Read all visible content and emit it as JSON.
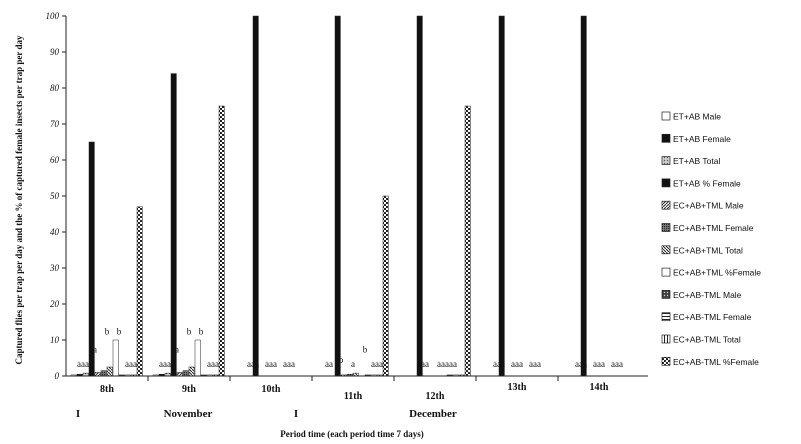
{
  "chart_data": {
    "type": "bar",
    "title": "",
    "ylabel": "Captured flies per trap per day and the % of captured female insects per trap per day",
    "xlabel": "Period time (each period time 7 days)",
    "ylim": [
      0,
      100
    ],
    "yticks": [
      0,
      10,
      20,
      30,
      40,
      50,
      60,
      70,
      80,
      90,
      100
    ],
    "categories": [
      "8th",
      "9th",
      "10th",
      "11th",
      "12th",
      "13th",
      "14th"
    ],
    "month_labels": [
      "I",
      "November",
      "I",
      "December"
    ],
    "legend_position": "right",
    "grid": false,
    "series": [
      {
        "name": "ET+AB Male",
        "pattern": "white",
        "values": [
          0.3,
          0.3,
          0,
          0,
          0,
          0,
          0
        ]
      },
      {
        "name": "ET+AB Female",
        "pattern": "black",
        "values": [
          0.5,
          0.5,
          0,
          0,
          0,
          0,
          0
        ]
      },
      {
        "name": "ET+AB Total",
        "pattern": "grey-dots",
        "values": [
          0.8,
          0.8,
          0,
          0,
          0,
          0,
          0
        ]
      },
      {
        "name": "ET+AB % Female",
        "pattern": "black",
        "values": [
          65,
          84,
          100,
          100,
          100,
          100,
          100
        ]
      },
      {
        "name": "EC+AB+TML Male",
        "pattern": "diagonal",
        "values": [
          1,
          1,
          0,
          0.3,
          0,
          0,
          0
        ]
      },
      {
        "name": "EC+AB+TML Female",
        "pattern": "dense",
        "values": [
          1.5,
          1.5,
          0,
          0.5,
          0,
          0,
          0
        ]
      },
      {
        "name": "EC+AB+TML Total",
        "pattern": "diagonal-back",
        "values": [
          2.5,
          2.5,
          0,
          0.8,
          0,
          0,
          0
        ]
      },
      {
        "name": "EC+AB+TML %Female",
        "pattern": "white",
        "values": [
          10,
          10,
          0,
          0,
          0,
          0,
          0
        ]
      },
      {
        "name": "EC+AB-TML Male",
        "pattern": "dark-dots",
        "values": [
          0.3,
          0.3,
          0,
          0.3,
          0.3,
          0,
          0
        ]
      },
      {
        "name": "EC+AB-TML Female",
        "pattern": "horizontal",
        "values": [
          0.3,
          0.3,
          0,
          0.3,
          0.3,
          0,
          0
        ]
      },
      {
        "name": "EC+AB-TML Total",
        "pattern": "vertical",
        "values": [
          0.3,
          0.3,
          0,
          0.3,
          0.3,
          0,
          0
        ]
      },
      {
        "name": "EC+AB-TML %Female",
        "pattern": "checker",
        "values": [
          47,
          75,
          0,
          50,
          75,
          0,
          0
        ]
      }
    ],
    "annotations": [
      {
        "category": "8th",
        "text": "aaa",
        "y": 2
      },
      {
        "category": "8th",
        "text": "a",
        "y": 6
      },
      {
        "category": "8th",
        "text": "b",
        "y": 11
      },
      {
        "category": "8th",
        "text": "b",
        "y": 11
      },
      {
        "category": "8th",
        "text": "aaa",
        "y": 2
      },
      {
        "category": "9th",
        "text": "aaa",
        "y": 2
      },
      {
        "category": "9th",
        "text": "a",
        "y": 6
      },
      {
        "category": "9th",
        "text": "b",
        "y": 11
      },
      {
        "category": "9th",
        "text": "b",
        "y": 11
      },
      {
        "category": "9th",
        "text": "aaa",
        "y": 2
      },
      {
        "category": "10th",
        "text": "aaa",
        "y": 2
      },
      {
        "category": "10th",
        "text": "aaa",
        "y": 2
      },
      {
        "category": "10th",
        "text": "aaa",
        "y": 2
      },
      {
        "category": "11th",
        "text": "aa",
        "y": 2
      },
      {
        "category": "11th",
        "text": "b",
        "y": 3
      },
      {
        "category": "11th",
        "text": "a",
        "y": 2
      },
      {
        "category": "11th",
        "text": "b",
        "y": 6
      },
      {
        "category": "11th",
        "text": "aaa",
        "y": 2
      },
      {
        "category": "12th",
        "text": "aaa",
        "y": 2
      },
      {
        "category": "12th",
        "text": "aaaaa",
        "y": 2
      },
      {
        "category": "13th",
        "text": "aaa",
        "y": 2
      },
      {
        "category": "13th",
        "text": "aaa",
        "y": 2
      },
      {
        "category": "13th",
        "text": "aaa",
        "y": 2
      },
      {
        "category": "14th",
        "text": "aaa",
        "y": 2
      },
      {
        "category": "14th",
        "text": "aaa",
        "y": 2
      },
      {
        "category": "14th",
        "text": "aaa",
        "y": 2
      }
    ]
  }
}
